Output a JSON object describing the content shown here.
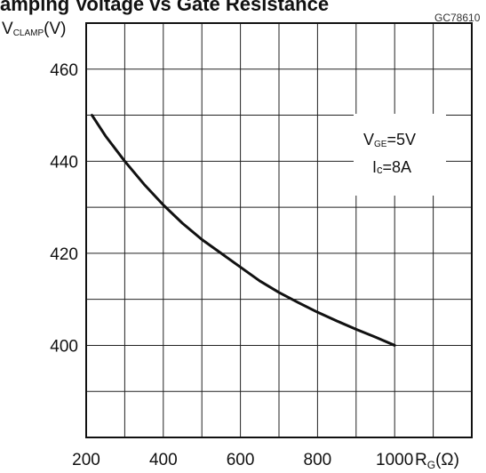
{
  "header": {
    "title_fragment": "amping Voltage vs Gate Resistance",
    "figure_code": "GC78610"
  },
  "chart_data": {
    "type": "line",
    "title": "amping Voltage vs Gate Resistance",
    "ylabel": {
      "main": "V",
      "sub": "CLAMP",
      "unit": "(V)"
    },
    "xlabel": {
      "main": "R",
      "sub": "G",
      "unit": "(Ω)"
    },
    "xlim": [
      200,
      1200
    ],
    "ylim": [
      380,
      470
    ],
    "x_ticks": [
      200,
      400,
      600,
      800,
      1000
    ],
    "x_tick_labels": [
      "200",
      "400",
      "600",
      "800",
      "1000"
    ],
    "y_ticks": [
      400,
      420,
      440,
      460
    ],
    "y_tick_labels": [
      "400",
      "420",
      "440",
      "460"
    ],
    "grid": true,
    "annotations": [
      {
        "main": "V",
        "sub": "GE",
        "value": "=5V"
      },
      {
        "main": "I",
        "sub": "c",
        "value": "=8A"
      }
    ],
    "series": [
      {
        "x": [
          215,
          250,
          300,
          350,
          400,
          450,
          500,
          550,
          600,
          650,
          700,
          750,
          800,
          850,
          900,
          950,
          1000
        ],
        "y": [
          450,
          445.5,
          440,
          435,
          430.5,
          426.5,
          423,
          420,
          417,
          414,
          411.5,
          409.3,
          407.2,
          405.3,
          403.5,
          401.8,
          400
        ]
      }
    ]
  }
}
